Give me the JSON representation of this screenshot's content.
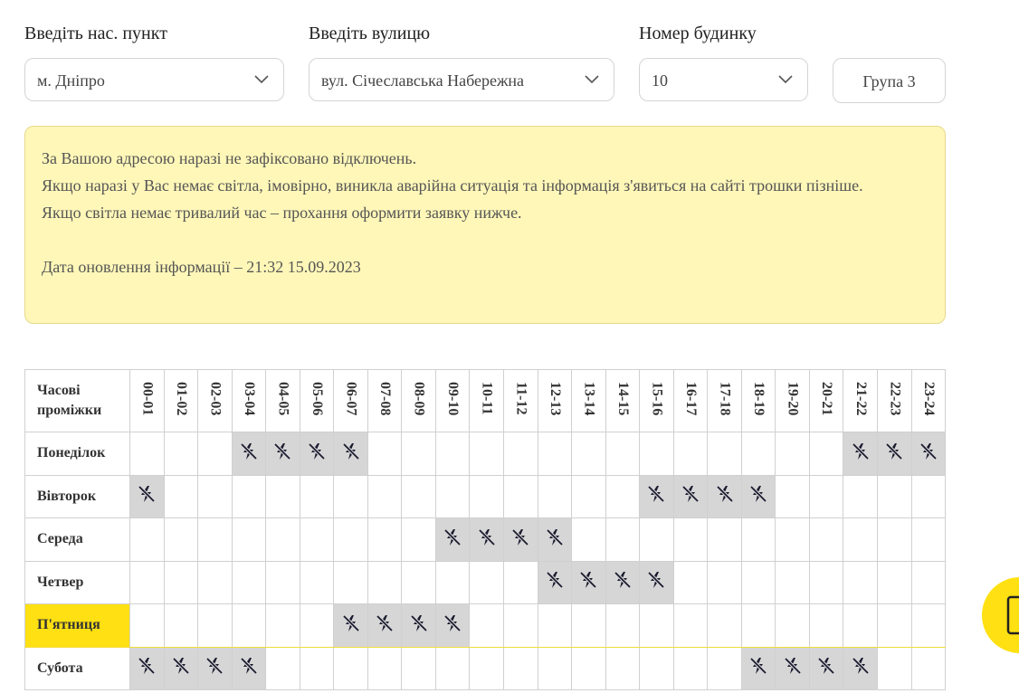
{
  "filters": {
    "city": {
      "label": "Введіть нас. пункт",
      "value": "м. Дніпро"
    },
    "street": {
      "label": "Введіть вулицю",
      "value": "вул. Січеславська Набережна"
    },
    "house": {
      "label": "Номер будинку",
      "value": "10"
    },
    "group": "Група 3"
  },
  "notice": {
    "lines": [
      "За Вашою адресою наразі не зафіксовано відключень.",
      "Якщо наразі у Вас немає світла, імовірно, виникла аварійна ситуація та інформація з'явиться на сайті трошки пізніше.",
      "Якщо світла немає тривалий час – прохання оформити заявку нижче."
    ],
    "updated": "Дата оновлення інформації – 21:32 15.09.2023"
  },
  "schedule": {
    "header": "Часові проміжки",
    "hours": [
      "00-01",
      "01-02",
      "02-03",
      "03-04",
      "04-05",
      "05-06",
      "06-07",
      "07-08",
      "08-09",
      "09-10",
      "10-11",
      "11-12",
      "12-13",
      "13-14",
      "14-15",
      "15-16",
      "16-17",
      "17-18",
      "18-19",
      "19-20",
      "20-21",
      "21-22",
      "22-23",
      "23-24"
    ],
    "rows": [
      {
        "day": "Понеділок",
        "highlighted": false,
        "off": [
          false,
          false,
          false,
          true,
          true,
          true,
          true,
          false,
          false,
          false,
          false,
          false,
          false,
          false,
          false,
          false,
          false,
          false,
          false,
          false,
          false,
          true,
          true,
          true
        ]
      },
      {
        "day": "Вівторок",
        "highlighted": false,
        "off": [
          true,
          false,
          false,
          false,
          false,
          false,
          false,
          false,
          false,
          false,
          false,
          false,
          false,
          false,
          false,
          true,
          true,
          true,
          true,
          false,
          false,
          false,
          false,
          false
        ]
      },
      {
        "day": "Середа",
        "highlighted": false,
        "off": [
          false,
          false,
          false,
          false,
          false,
          false,
          false,
          false,
          false,
          true,
          true,
          true,
          true,
          false,
          false,
          false,
          false,
          false,
          false,
          false,
          false,
          false,
          false,
          false
        ]
      },
      {
        "day": "Четвер",
        "highlighted": false,
        "off": [
          false,
          false,
          false,
          false,
          false,
          false,
          false,
          false,
          false,
          false,
          false,
          false,
          true,
          true,
          true,
          true,
          false,
          false,
          false,
          false,
          false,
          false,
          false,
          false
        ]
      },
      {
        "day": "П'ятниця",
        "highlighted": true,
        "off": [
          false,
          false,
          false,
          false,
          false,
          false,
          true,
          true,
          true,
          true,
          false,
          false,
          false,
          false,
          false,
          false,
          false,
          false,
          false,
          false,
          false,
          false,
          false,
          false
        ]
      },
      {
        "day": "Субота",
        "highlighted": false,
        "off": [
          true,
          true,
          true,
          true,
          false,
          false,
          false,
          false,
          false,
          false,
          false,
          false,
          false,
          false,
          false,
          false,
          false,
          false,
          true,
          true,
          true,
          true,
          false,
          false
        ]
      }
    ]
  }
}
